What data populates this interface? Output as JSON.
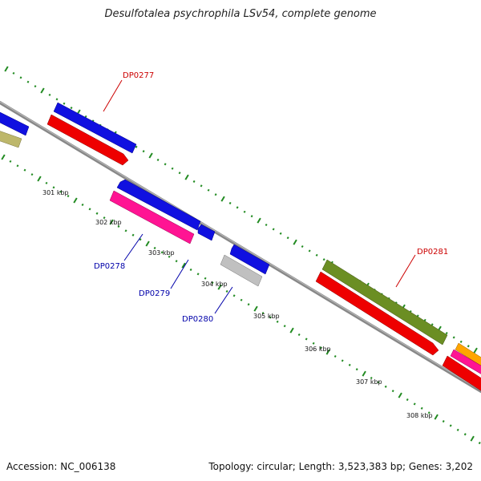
{
  "title": "Desulfotalea psychrophila LSv54, complete genome",
  "footer": {
    "accession": "Accession: NC_006138",
    "summary": "Topology: circular; Length: 3,523,383 bp; Genes: 3,202"
  },
  "ticks": [
    {
      "label": "301 kbp",
      "kbp": 301
    },
    {
      "label": "302 kbp",
      "kbp": 302
    },
    {
      "label": "303 kbp",
      "kbp": 303
    },
    {
      "label": "304 kbp",
      "kbp": 304
    },
    {
      "label": "305 kbp",
      "kbp": 305
    },
    {
      "label": "306 kbp",
      "kbp": 306
    },
    {
      "label": "307 kbp",
      "kbp": 307
    },
    {
      "label": "308 kbp",
      "kbp": 308
    }
  ],
  "gene_labels": [
    {
      "name": "DP0277",
      "strand": "forward",
      "color": "#cc0000"
    },
    {
      "name": "DP0278",
      "strand": "reverse",
      "color": "#0000aa"
    },
    {
      "name": "DP0279",
      "strand": "reverse",
      "color": "#0000aa"
    },
    {
      "name": "DP0280",
      "strand": "reverse",
      "color": "#0000aa"
    },
    {
      "name": "DP0281",
      "strand": "forward",
      "color": "#cc0000"
    }
  ],
  "feature_colors": {
    "blue": "#1010e0",
    "red": "#ee0000",
    "pink": "#ff1493",
    "olive": "#6b8e23",
    "khaki": "#bdb76b",
    "gray": "#c0c0c0",
    "orange": "#ffa500",
    "backbone": "#888888",
    "tick": "#228b22"
  }
}
